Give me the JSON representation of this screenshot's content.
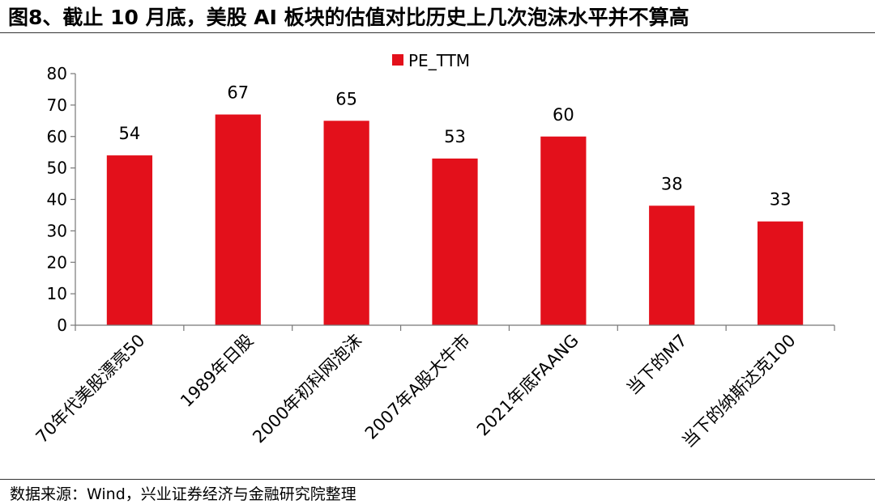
{
  "header": {
    "title": "图8、截止 10 月底，美股 AI 板块的估值对比历史上几次泡沫水平并不算高"
  },
  "footer": {
    "source": "数据来源：Wind，兴业证券经济与金融研究院整理"
  },
  "chart_data": {
    "type": "bar",
    "categories": [
      "70年代美股漂亮50",
      "1989年日股",
      "2000年初科网泡沫",
      "2007年A股大牛市",
      "2021年底FAANG",
      "当下的M7",
      "当下的纳斯达克100"
    ],
    "series": [
      {
        "name": "PE_TTM",
        "values": [
          54,
          67,
          65,
          53,
          60,
          38,
          33
        ]
      }
    ],
    "title": "",
    "xlabel": "",
    "ylabel": "",
    "ylim": [
      0,
      80
    ],
    "yticks": [
      0,
      10,
      20,
      30,
      40,
      50,
      60,
      70,
      80
    ],
    "grid": false,
    "legend": "top-center",
    "bar_color": "#e3101b"
  }
}
